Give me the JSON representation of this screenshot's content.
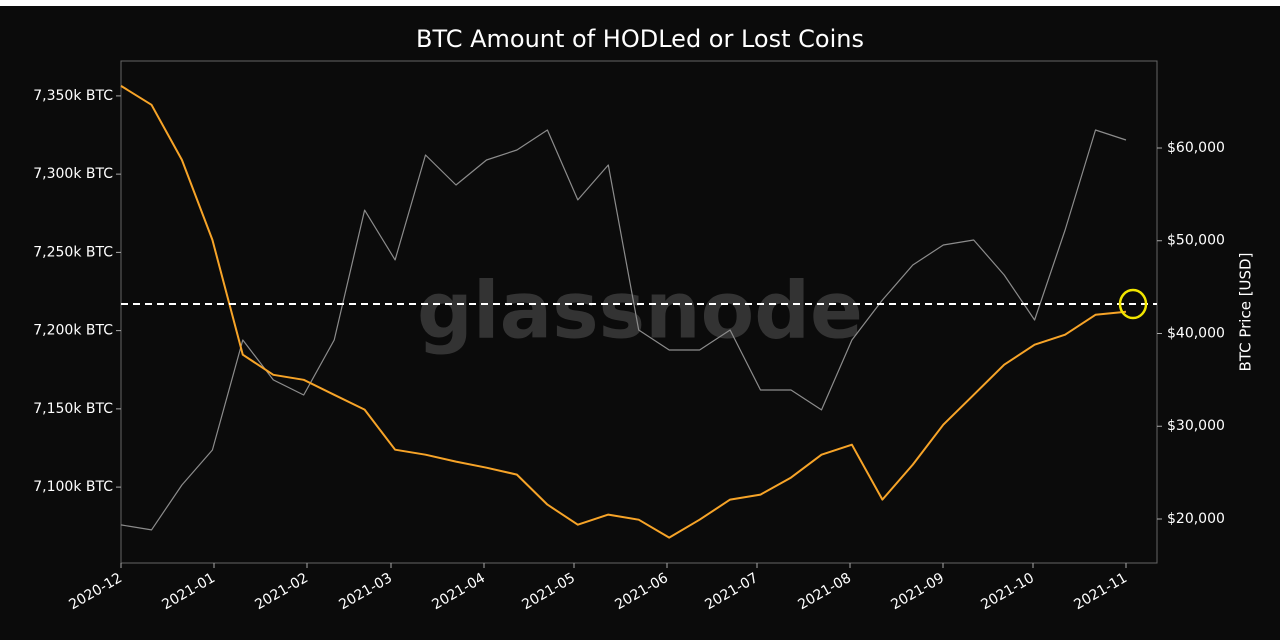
{
  "chart_data": {
    "type": "line",
    "title": "BTC Amount of HODLed or Lost Coins",
    "watermark": "glassnode",
    "y2label": "BTC Price [USD]",
    "xlim": [
      "2020-12",
      "2021-11"
    ],
    "xticks": [
      "2020-12",
      "2021-01",
      "2021-02",
      "2021-03",
      "2021-04",
      "2021-05",
      "2021-06",
      "2021-07",
      "2021-08",
      "2021-09",
      "2021-10",
      "2021-11"
    ],
    "ylim": [
      7051500,
      7372300
    ],
    "yticks": [
      {
        "value": 7100000,
        "label": "7,100k BTC"
      },
      {
        "value": 7150000,
        "label": "7,150k BTC"
      },
      {
        "value": 7200000,
        "label": "7,200k BTC"
      },
      {
        "value": 7250000,
        "label": "7,250k BTC"
      },
      {
        "value": 7300000,
        "label": "7,300k BTC"
      },
      {
        "value": 7350000,
        "label": "7,350k BTC"
      }
    ],
    "y2lim": [
      15256,
      69380
    ],
    "y2ticks": [
      {
        "value": 20000,
        "label": "$20,000"
      },
      {
        "value": 30000,
        "label": "$30,000"
      },
      {
        "value": 40000,
        "label": "$40,000"
      },
      {
        "value": 50000,
        "label": "$50,000"
      },
      {
        "value": 60000,
        "label": "$60,000"
      }
    ],
    "reference_line": 7217000,
    "series": [
      {
        "name": "BTC Price",
        "axis": "y2",
        "color": "#8c8c8c",
        "values": [
          19360,
          18820,
          23670,
          27440,
          39300,
          35000,
          33370,
          39300,
          53300,
          47930,
          59250,
          56010,
          58710,
          59780,
          61940,
          54400,
          58170,
          40380,
          38220,
          38220,
          40380,
          33910,
          33910,
          31760,
          39300,
          43610,
          47390,
          49540,
          50080,
          46310,
          41460,
          51160,
          61940,
          60860
        ]
      },
      {
        "name": "HODLed or Lost Coins",
        "color": "#f7a428",
        "values": [
          7356400,
          7344300,
          7309100,
          7258000,
          7184600,
          7171800,
          7168600,
          7159000,
          7149500,
          7123900,
          7120700,
          7116300,
          7112400,
          7108000,
          7088800,
          7076000,
          7082400,
          7079200,
          7067700,
          7079200,
          7092000,
          7095200,
          7106100,
          7120700,
          7127100,
          7092000,
          7114400,
          7139900,
          7159000,
          7178200,
          7191000,
          7197400,
          7210100,
          7212100
        ]
      }
    ]
  }
}
